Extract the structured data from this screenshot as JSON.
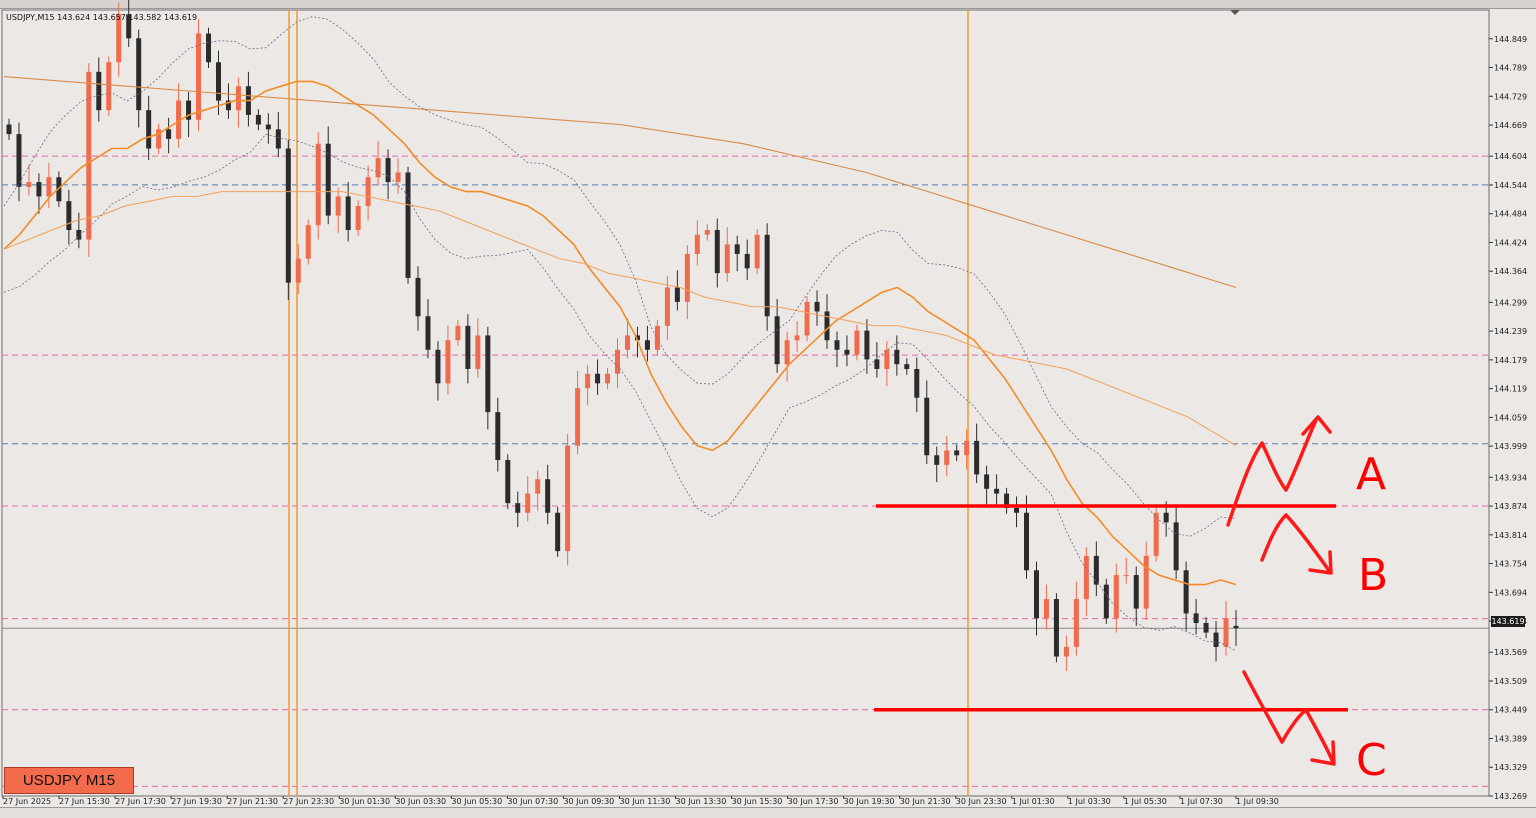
{
  "header": {
    "symbol_line": "USDJPY,M15  143.624 143.657 143.582 143.619"
  },
  "badge": {
    "label": "USDJPY M15"
  },
  "current_price": "143.619",
  "chart_data": {
    "type": "candlestick",
    "symbol": "USDJPY",
    "timeframe": "M15",
    "ohlc_last": {
      "open": 143.624,
      "high": 143.657,
      "low": 143.582,
      "close": 143.619
    },
    "ylim": [
      143.269,
      144.909
    ],
    "y_ticks": [
      "144.849",
      "144.789",
      "144.729",
      "144.669",
      "144.604",
      "144.544",
      "144.484",
      "144.424",
      "144.364",
      "144.299",
      "144.239",
      "144.179",
      "144.119",
      "144.059",
      "143.999",
      "143.934",
      "143.874",
      "143.814",
      "143.754",
      "143.694",
      "143.634",
      "143.569",
      "143.509",
      "143.449",
      "143.389",
      "143.329",
      "143.269"
    ],
    "x_ticks": [
      "27 Jun 2025",
      "27 Jun 15:30",
      "27 Jun 17:30",
      "27 Jun 19:30",
      "27 Jun 21:30",
      "27 Jun 23:30",
      "30 Jun 01:30",
      "30 Jun 03:30",
      "30 Jun 05:30",
      "30 Jun 07:30",
      "30 Jun 09:30",
      "30 Jun 11:30",
      "30 Jun 13:30",
      "30 Jun 15:30",
      "30 Jun 17:30",
      "30 Jun 19:30",
      "30 Jun 21:30",
      "30 Jun 23:30",
      "1 Jul 01:30",
      "1 Jul 03:30",
      "1 Jul 05:30",
      "1 Jul 07:30",
      "1 Jul 09:30"
    ],
    "candle_closes": [
      144.65,
      144.54,
      144.55,
      144.52,
      144.56,
      144.51,
      144.45,
      144.43,
      144.78,
      144.7,
      144.8,
      144.9,
      144.85,
      144.7,
      144.62,
      144.66,
      144.64,
      144.72,
      144.68,
      144.86,
      144.8,
      144.72,
      144.7,
      144.75,
      144.69,
      144.67,
      144.66,
      144.62,
      144.34,
      144.39,
      144.46,
      144.63,
      144.48,
      144.52,
      144.45,
      144.5,
      144.56,
      144.6,
      144.55,
      144.57,
      144.35,
      144.27,
      144.2,
      144.13,
      144.22,
      144.25,
      144.16,
      144.23,
      144.07,
      143.97,
      143.88,
      143.86,
      143.9,
      143.93,
      143.86,
      143.78,
      144.0,
      144.12,
      144.15,
      144.13,
      144.15,
      144.2,
      144.23,
      144.22,
      144.2,
      144.25,
      144.33,
      144.3,
      144.4,
      144.44,
      144.45,
      144.36,
      144.42,
      144.4,
      144.37,
      144.44,
      144.27,
      144.17,
      144.22,
      144.23,
      144.3,
      144.28,
      144.22,
      144.2,
      144.19,
      144.24,
      144.18,
      144.16,
      144.2,
      144.17,
      144.16,
      144.1,
      143.98,
      143.96,
      143.99,
      143.98,
      144.01,
      143.94,
      143.91,
      143.9,
      143.87,
      143.86,
      143.74,
      143.64,
      143.68,
      143.56,
      143.58,
      143.68,
      143.77,
      143.71,
      143.64,
      143.73,
      143.73,
      143.66,
      143.77,
      143.86,
      143.84,
      143.74,
      143.65,
      143.63,
      143.61,
      143.58,
      143.64,
      143.619
    ],
    "series": [
      {
        "name": "",
        "color": "#f28c28",
        "values": [
          144.41,
          144.44,
          144.48,
          144.52,
          144.55,
          144.58,
          144.6,
          144.62,
          144.62,
          144.64,
          144.65,
          144.67,
          144.69,
          144.7,
          144.71,
          144.72,
          144.72,
          144.74,
          144.75,
          144.76,
          144.76,
          144.75,
          144.73,
          144.71,
          144.69,
          144.66,
          144.63,
          144.59,
          144.56,
          144.54,
          144.53,
          144.53,
          144.52,
          144.51,
          144.5,
          144.48,
          144.45,
          144.42,
          144.37,
          144.33,
          144.29,
          144.23,
          144.15,
          144.09,
          144.04,
          144.0,
          143.99,
          144.01,
          144.05,
          144.09,
          144.13,
          144.17,
          144.2,
          144.23,
          144.26,
          144.28,
          144.3,
          144.32,
          144.33,
          144.31,
          144.28,
          144.26,
          144.24,
          144.22,
          144.18,
          144.14,
          144.09,
          144.04,
          143.99,
          143.93,
          143.88,
          143.85,
          143.81,
          143.78,
          143.75,
          143.73,
          143.72,
          143.71,
          143.71,
          143.72,
          143.71
        ]
      },
      {
        "name": "",
        "color": "#f4a15a",
        "values": [
          144.41,
          144.43,
          144.45,
          144.47,
          144.48,
          144.5,
          144.51,
          144.52,
          144.52,
          144.53,
          144.53,
          144.53,
          144.53,
          144.53,
          144.53,
          144.52,
          144.51,
          144.5,
          144.49,
          144.47,
          144.45,
          144.43,
          144.41,
          144.39,
          144.38,
          144.36,
          144.35,
          144.34,
          144.33,
          144.31,
          144.3,
          144.29,
          144.29,
          144.28,
          144.27,
          144.26,
          144.25,
          144.25,
          144.24,
          144.23,
          144.21,
          144.19,
          144.18,
          144.17,
          144.16,
          144.14,
          144.12,
          144.1,
          144.08,
          144.06,
          144.03,
          144.0
        ]
      },
      {
        "name": "",
        "color": "#d98b48",
        "values": [
          144.77,
          144.76,
          144.75,
          144.74,
          144.73,
          144.72,
          144.71,
          144.7,
          144.69,
          144.68,
          144.67,
          144.65,
          144.63,
          144.6,
          144.57,
          144.53,
          144.49,
          144.45,
          144.41,
          144.37,
          144.33
        ]
      }
    ],
    "horizontal_lines": [
      {
        "value": 144.604,
        "style": "pink-dashed"
      },
      {
        "value": 144.544,
        "style": "blue-dashed"
      },
      {
        "value": 144.189,
        "style": "pink-dashed"
      },
      {
        "value": 144.004,
        "style": "blue-dashed"
      },
      {
        "value": 143.874,
        "style": "pink-dashed"
      },
      {
        "value": 143.639,
        "style": "pink-dashed"
      },
      {
        "value": 143.449,
        "style": "pink-dashed"
      },
      {
        "value": 143.289,
        "style": "pink-dashed"
      }
    ],
    "annotations": [
      {
        "label": "A",
        "color": "#ff0000",
        "level": 143.874
      },
      {
        "label": "B",
        "color": "#ff0000"
      },
      {
        "label": "C",
        "color": "#ff0000",
        "level": 143.449
      }
    ],
    "grid": false
  }
}
